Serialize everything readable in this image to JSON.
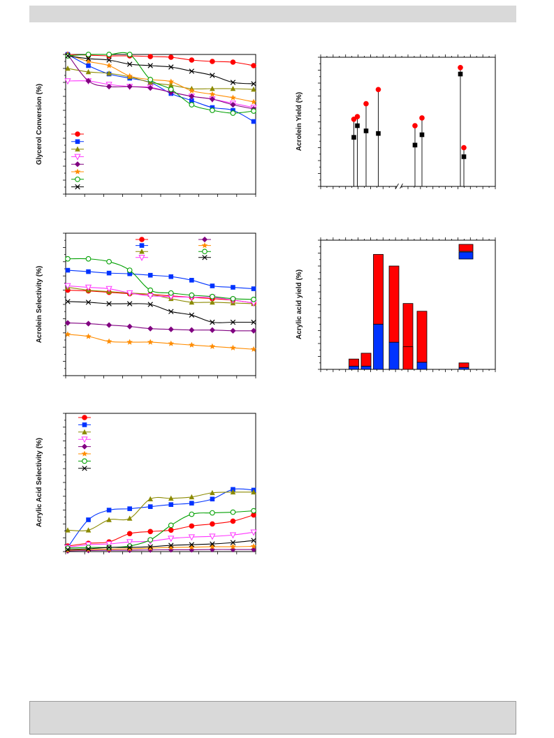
{
  "figure": {
    "colors": {
      "red": "#ff0000",
      "blue": "#0033ff",
      "olive": "#8b8a00",
      "magenta": "#ff33ff",
      "purple": "#800080",
      "orange": "#ff8c00",
      "green": "#00a000",
      "black": "#000000"
    }
  },
  "chart_data": [
    {
      "type": "line",
      "ylabel": "Glycerol Conversion (%)",
      "xlabel": "",
      "x": [
        0,
        1,
        2,
        3,
        4,
        5,
        6,
        7,
        8,
        9
      ],
      "xlim": [
        -0.1,
        9.1
      ],
      "ylim": [
        0,
        100
      ],
      "legend_position": "bottom-left",
      "series": [
        {
          "marker": "circle-filled",
          "color": "red",
          "values": [
            100,
            99.5,
            99,
            99,
            98.5,
            98,
            96,
            95,
            94.5,
            92
          ]
        },
        {
          "marker": "square-filled",
          "color": "blue",
          "values": [
            100,
            92,
            86,
            83,
            80,
            72,
            67,
            62,
            60,
            52
          ]
        },
        {
          "marker": "triangle-up-filled",
          "color": "olive",
          "values": [
            90,
            87.5,
            86.5,
            84,
            80,
            78,
            75.5,
            75.5,
            75.5,
            75
          ]
        },
        {
          "marker": "triangle-down-open",
          "color": "magenta",
          "values": [
            81,
            81,
            78.5,
            77,
            76.5,
            73,
            70,
            68,
            65,
            62
          ]
        },
        {
          "marker": "diamond-filled",
          "color": "purple",
          "values": [
            100,
            81,
            77,
            77,
            76,
            73,
            70,
            68,
            64,
            61
          ]
        },
        {
          "marker": "star",
          "color": "orange",
          "values": [
            100,
            95,
            92,
            84.5,
            82,
            80.5,
            74,
            71.5,
            69,
            66
          ]
        },
        {
          "marker": "circle-open",
          "color": "green",
          "values": [
            99,
            100,
            100,
            100,
            82,
            75,
            64,
            60,
            58,
            59.5
          ]
        },
        {
          "marker": "x",
          "color": "black",
          "values": [
            99,
            97,
            96,
            93,
            92,
            91,
            88,
            85,
            80,
            79
          ]
        }
      ]
    },
    {
      "type": "scatter",
      "ylabel": "Acrolein Yield (%)",
      "xlabel": "",
      "xlim": [
        0,
        100
      ],
      "ylim": [
        0,
        100
      ],
      "axis_break": true,
      "series": [
        {
          "marker": "circle-filled",
          "color": "red",
          "x": [
            19,
            21,
            26,
            33,
            54,
            58,
            80,
            82
          ],
          "y": [
            52,
            54,
            64,
            75,
            47,
            53,
            92,
            30
          ]
        },
        {
          "marker": "square-filled",
          "color": "black",
          "x": [
            19,
            21,
            26,
            33,
            54,
            58,
            80,
            82
          ],
          "y": [
            38,
            47,
            43,
            41,
            32,
            40,
            87,
            23
          ]
        }
      ]
    },
    {
      "type": "line",
      "ylabel": "Acrolein Selectivity (%)",
      "xlabel": "",
      "x": [
        0,
        1,
        2,
        3,
        4,
        5,
        6,
        7,
        8,
        9
      ],
      "xlim": [
        -0.1,
        9.1
      ],
      "ylim": [
        0,
        100
      ],
      "legend_position": "top-center",
      "series": [
        {
          "marker": "circle-filled",
          "color": "red",
          "values": [
            60,
            59.5,
            58.5,
            57.5,
            57,
            56,
            55,
            54,
            53,
            51
          ]
        },
        {
          "marker": "square-filled",
          "color": "blue",
          "values": [
            74,
            73,
            72,
            71.5,
            70.5,
            69.5,
            67,
            63,
            62,
            61
          ]
        },
        {
          "marker": "triangle-up-filled",
          "color": "olive",
          "values": [
            62,
            60,
            59,
            58,
            57,
            54,
            51.5,
            51.5,
            51,
            50.5
          ]
        },
        {
          "marker": "triangle-down-open",
          "color": "magenta",
          "values": [
            63,
            62,
            61,
            58,
            56,
            55.5,
            55,
            55,
            53,
            51
          ]
        },
        {
          "marker": "diamond-filled",
          "color": "purple",
          "values": [
            37,
            36.5,
            35.5,
            34.5,
            33,
            32.5,
            32,
            32,
            31.5,
            31.5
          ]
        },
        {
          "marker": "star",
          "color": "orange",
          "values": [
            29,
            27.5,
            24,
            23.5,
            23.5,
            22.5,
            21.5,
            20.5,
            19.5,
            18.5
          ]
        },
        {
          "marker": "circle-open",
          "color": "green",
          "values": [
            82,
            82,
            80,
            74,
            60,
            58,
            56.5,
            55.5,
            54,
            53.5
          ]
        },
        {
          "marker": "x",
          "color": "black",
          "values": [
            52,
            51.5,
            50.5,
            50.5,
            50,
            45,
            42.5,
            37.5,
            37.5,
            37.5
          ]
        }
      ]
    },
    {
      "type": "bar",
      "ylabel": "Acrylic acid yield (%)",
      "xlabel": "",
      "xlim": [
        0,
        100
      ],
      "ylim": [
        0,
        100
      ],
      "stacked": true,
      "legend_position": "top-right",
      "legend_entries": [
        {
          "color": "red"
        },
        {
          "color": "blue"
        }
      ],
      "bars": [
        {
          "x": 19,
          "blue": 2.5,
          "red": 5.5
        },
        {
          "x": 26,
          "blue": 2.5,
          "red": 10
        },
        {
          "x": 33,
          "blue": 35,
          "red": 54
        },
        {
          "x": 42,
          "blue": 21,
          "red": 59
        },
        {
          "x": 50,
          "blue": 10.5,
          "red": 40.5
        },
        {
          "x": 50,
          "blue": 0,
          "red": 17.5
        },
        {
          "x": 58,
          "blue": 5.5,
          "red": 39.5
        },
        {
          "x": 82,
          "blue": 1.5,
          "red": 3.5
        }
      ]
    },
    {
      "type": "line",
      "ylabel": "Acrylic Acid Selectivity (%)",
      "xlabel": "",
      "x": [
        0,
        1,
        2,
        3,
        4,
        5,
        6,
        7,
        8,
        9
      ],
      "xlim": [
        -0.1,
        9.1
      ],
      "ylim": [
        0,
        100
      ],
      "legend_position": "top-left",
      "series": [
        {
          "marker": "circle-filled",
          "color": "red",
          "values": [
            4,
            6,
            7,
            13,
            14.5,
            15.5,
            18.5,
            20,
            22,
            26.5
          ]
        },
        {
          "marker": "square-filled",
          "color": "blue",
          "values": [
            3,
            23,
            30,
            31,
            32.5,
            34,
            35,
            38,
            45,
            44.5
          ]
        },
        {
          "marker": "triangle-up-filled",
          "color": "olive",
          "values": [
            15.5,
            15.5,
            23,
            24,
            38,
            38.5,
            39.5,
            42.5,
            43,
            43
          ]
        },
        {
          "marker": "triangle-down-open",
          "color": "magenta",
          "values": [
            3,
            5,
            5.5,
            7,
            7.5,
            9.5,
            10.5,
            11,
            12,
            14
          ]
        },
        {
          "marker": "diamond-filled",
          "color": "purple",
          "values": [
            0.5,
            0.8,
            1,
            1,
            1.2,
            1.3,
            1.3,
            1.5,
            1.5,
            1.5
          ]
        },
        {
          "marker": "star",
          "color": "orange",
          "values": [
            1,
            1.5,
            1.8,
            2,
            2.5,
            3,
            3.2,
            3.5,
            3.5,
            3.8
          ]
        },
        {
          "marker": "circle-open",
          "color": "green",
          "values": [
            2.5,
            3,
            3,
            4,
            8.5,
            19,
            27,
            28,
            28.5,
            29.5
          ]
        },
        {
          "marker": "x",
          "color": "black",
          "values": [
            1.5,
            2,
            3,
            3,
            3.5,
            4.5,
            5,
            5.5,
            6.5,
            8
          ]
        }
      ]
    }
  ]
}
